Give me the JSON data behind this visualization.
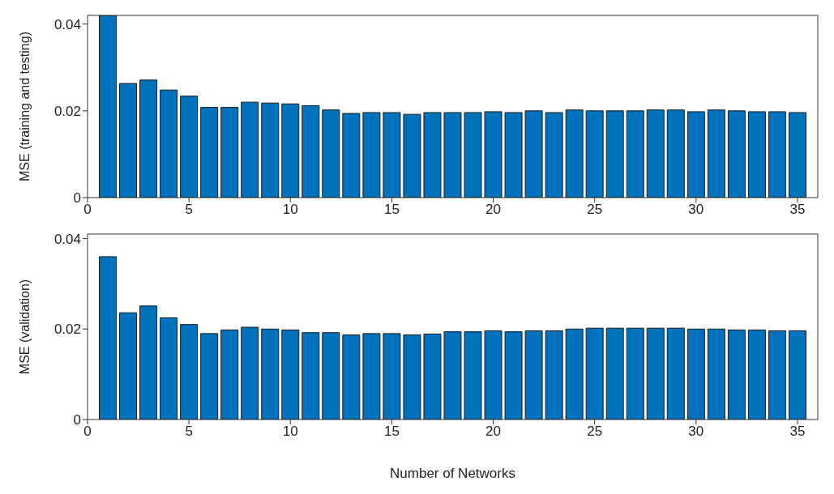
{
  "chart_data": [
    {
      "type": "bar",
      "ylabel": "MSE (training and testing)",
      "x": [
        1,
        2,
        3,
        4,
        5,
        6,
        7,
        8,
        9,
        10,
        11,
        12,
        13,
        14,
        15,
        16,
        17,
        18,
        19,
        20,
        21,
        22,
        23,
        24,
        25,
        26,
        27,
        28,
        29,
        30,
        31,
        32,
        33,
        34,
        35
      ],
      "values": [
        0.042,
        0.0263,
        0.0271,
        0.0248,
        0.0234,
        0.0208,
        0.0208,
        0.022,
        0.0218,
        0.0216,
        0.0212,
        0.0202,
        0.0194,
        0.0196,
        0.0196,
        0.0192,
        0.0196,
        0.0196,
        0.0196,
        0.0198,
        0.0196,
        0.02,
        0.0196,
        0.0202,
        0.02,
        0.02,
        0.02,
        0.0202,
        0.0202,
        0.0198,
        0.0202,
        0.02,
        0.0198,
        0.0198,
        0.0196
      ],
      "color": "#0072bd",
      "xlim": [
        0,
        36
      ],
      "xticks": [
        0,
        5,
        10,
        15,
        20,
        25,
        30,
        35
      ],
      "ylim": [
        0,
        0.042
      ],
      "yticks": [
        0,
        0.02,
        0.04
      ],
      "grid": false
    },
    {
      "type": "bar",
      "xlabel": "Number of Networks",
      "ylabel": "MSE (validation)",
      "x": [
        1,
        2,
        3,
        4,
        5,
        6,
        7,
        8,
        9,
        10,
        11,
        12,
        13,
        14,
        15,
        16,
        17,
        18,
        19,
        20,
        21,
        22,
        23,
        24,
        25,
        26,
        27,
        28,
        29,
        30,
        31,
        32,
        33,
        34,
        35
      ],
      "values": [
        0.036,
        0.0236,
        0.0251,
        0.0225,
        0.021,
        0.019,
        0.0198,
        0.0204,
        0.02,
        0.0198,
        0.0192,
        0.0192,
        0.0187,
        0.019,
        0.019,
        0.0187,
        0.0189,
        0.0194,
        0.0194,
        0.0196,
        0.0194,
        0.0196,
        0.0196,
        0.02,
        0.0202,
        0.0202,
        0.0202,
        0.0202,
        0.0202,
        0.02,
        0.02,
        0.0198,
        0.0198,
        0.0196,
        0.0196
      ],
      "color": "#0072bd",
      "xlim": [
        0,
        36
      ],
      "xticks": [
        0,
        5,
        10,
        15,
        20,
        25,
        30,
        35
      ],
      "ylim": [
        0,
        0.041
      ],
      "yticks": [
        0,
        0.02,
        0.04
      ],
      "grid": false
    }
  ]
}
